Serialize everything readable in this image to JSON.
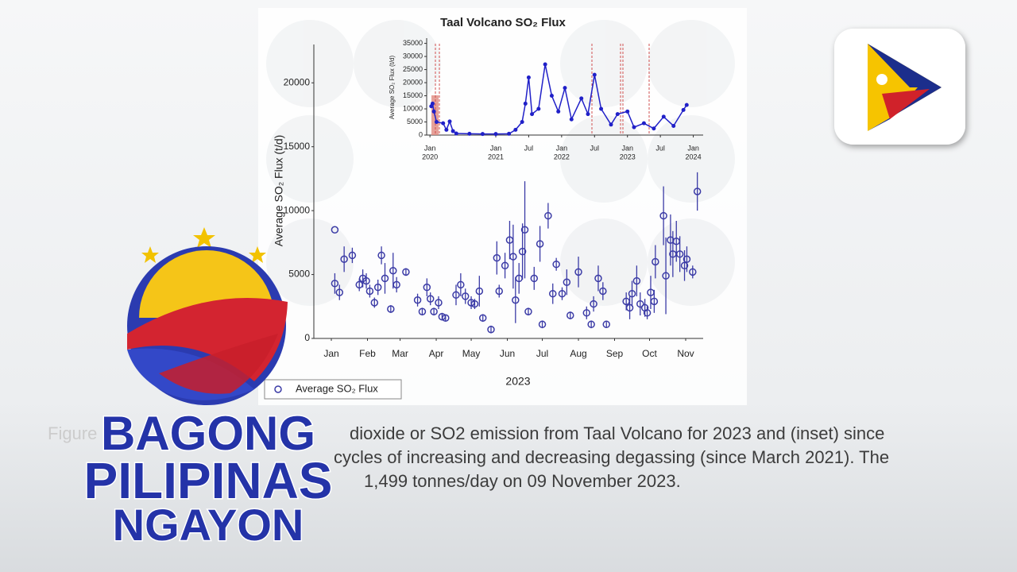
{
  "chart_data": [
    {
      "type": "scatter",
      "title": "Taal Volcano SO₂ Flux",
      "y_label": "Average SO₂ Flux (t/d)",
      "x_label": "2023",
      "xlim": [
        -14,
        320
      ],
      "ylim": [
        0,
        23000
      ],
      "xticks": [
        {
          "value": 1,
          "label": "Jan"
        },
        {
          "value": 32,
          "label": "Feb"
        },
        {
          "value": 60,
          "label": "Mar"
        },
        {
          "value": 91,
          "label": "Apr"
        },
        {
          "value": 121,
          "label": "May"
        },
        {
          "value": 152,
          "label": "Jun"
        },
        {
          "value": 182,
          "label": "Jul"
        },
        {
          "value": 213,
          "label": "Aug"
        },
        {
          "value": 244,
          "label": "Sep"
        },
        {
          "value": 274,
          "label": "Oct"
        },
        {
          "value": 305,
          "label": "Nov"
        }
      ],
      "yticks": [
        0,
        5000,
        10000,
        15000,
        20000
      ],
      "series": [
        {
          "name": "Average SO₂ Flux",
          "color": "#3b3ba6",
          "x": [
            4,
            4,
            8,
            12,
            19,
            25,
            28,
            31,
            34,
            38,
            41,
            44,
            47,
            52,
            54,
            57,
            65,
            75,
            79,
            83,
            86,
            89,
            93,
            96,
            99,
            108,
            112,
            116,
            121,
            124,
            128,
            131,
            138,
            143,
            145,
            150,
            154,
            157,
            159,
            162,
            165,
            167,
            170,
            175,
            180,
            182,
            187,
            191,
            194,
            199,
            203,
            206,
            213,
            220,
            224,
            226,
            230,
            234,
            237,
            254,
            257,
            259,
            263,
            266,
            270,
            272,
            275,
            278,
            279,
            286,
            288,
            292,
            294,
            297,
            300,
            304,
            306,
            311,
            315
          ],
          "values": [
            8500,
            4300,
            3600,
            6200,
            6500,
            4200,
            4700,
            4500,
            3700,
            2800,
            4000,
            6500,
            4700,
            2300,
            5300,
            4200,
            5200,
            3000,
            2100,
            4000,
            3100,
            2100,
            2800,
            1700,
            1600,
            3400,
            4200,
            3300,
            2800,
            2700,
            3700,
            1600,
            700,
            6300,
            3700,
            5700,
            7700,
            6400,
            3000,
            4700,
            6800,
            8500,
            2100,
            4700,
            7400,
            1100,
            9600,
            3500,
            5800,
            3500,
            4400,
            1800,
            5200,
            2000,
            1100,
            2700,
            4700,
            3700,
            1100,
            2900,
            2400,
            3500,
            4500,
            2700,
            2400,
            2000,
            3600,
            2900,
            6000,
            9600,
            4900,
            7700,
            6600,
            7600,
            6600,
            5700,
            6200,
            5200,
            11500
          ],
          "errors": [
            0,
            800,
            600,
            1000,
            600,
            500,
            700,
            600,
            500,
            400,
            600,
            700,
            1200,
            300,
            1400,
            600,
            300,
            500,
            300,
            700,
            500,
            300,
            500,
            300,
            200,
            800,
            900,
            600,
            500,
            400,
            1200,
            300,
            300,
            1300,
            500,
            1000,
            1500,
            2500,
            1800,
            1200,
            2200,
            3800,
            300,
            900,
            1400,
            300,
            1000,
            800,
            500,
            500,
            1000,
            300,
            1200,
            500,
            300,
            600,
            1000,
            700,
            200,
            700,
            900,
            1000,
            1200,
            900,
            700,
            500,
            1300,
            900,
            1300,
            2300,
            3000,
            2000,
            1800,
            1600,
            1400,
            1200,
            1000,
            500,
            1500
          ]
        }
      ],
      "legend": "bottom-left"
    },
    {
      "type": "line",
      "y_label": "Average SO₂ Flux (t/d)",
      "color": "#2020c8",
      "xlim": [
        2019.95,
        2024.15
      ],
      "ylim": [
        0,
        37000
      ],
      "xticks": [
        {
          "value": 2020,
          "label": "Jan"
        },
        {
          "value": 2021,
          "label": "Jan"
        },
        {
          "value": 2021.5,
          "label": "Jul"
        },
        {
          "value": 2022,
          "label": "Jan"
        },
        {
          "value": 2022.5,
          "label": "Jul"
        },
        {
          "value": 2023,
          "label": "Jan"
        },
        {
          "value": 2023.5,
          "label": "Jul"
        },
        {
          "value": 2024,
          "label": "Jan"
        }
      ],
      "xyears": [
        2020,
        2021,
        2022,
        2023,
        2024
      ],
      "yticks": [
        0,
        5000,
        10000,
        15000,
        20000,
        25000,
        30000,
        35000
      ],
      "x": [
        2020.02,
        2020.04,
        2020.06,
        2020.1,
        2020.2,
        2020.25,
        2020.3,
        2020.35,
        2020.4,
        2020.6,
        2020.8,
        2021.0,
        2021.2,
        2021.3,
        2021.4,
        2021.45,
        2021.5,
        2021.55,
        2021.65,
        2021.75,
        2021.85,
        2021.95,
        2022.05,
        2022.15,
        2022.3,
        2022.4,
        2022.5,
        2022.6,
        2022.75,
        2022.85,
        2023.0,
        2023.1,
        2023.25,
        2023.4,
        2023.55,
        2023.7,
        2023.85,
        2023.9
      ],
      "values": [
        11000,
        12000,
        9000,
        5000,
        4500,
        2000,
        5200,
        1500,
        600,
        500,
        400,
        400,
        500,
        2000,
        5000,
        12000,
        22000,
        8000,
        10000,
        27000,
        15000,
        9000,
        18000,
        6000,
        14000,
        8000,
        23000,
        10000,
        4000,
        8000,
        9000,
        3000,
        4500,
        2500,
        7000,
        3500,
        9600,
        11500
      ]
    }
  ],
  "caption": {
    "lines": [
      "Figure",
      "dioxide or SO2 emission from Taal Volcano for 2023 and (inset) since",
      "cycles of increasing and decreasing degassing (since March 2021). The",
      "1,499 tonnes/day on 09 November 2023."
    ]
  },
  "logo": {
    "lines": [
      "BAGONG",
      "PILIPINAS",
      "NGAYON"
    ]
  }
}
